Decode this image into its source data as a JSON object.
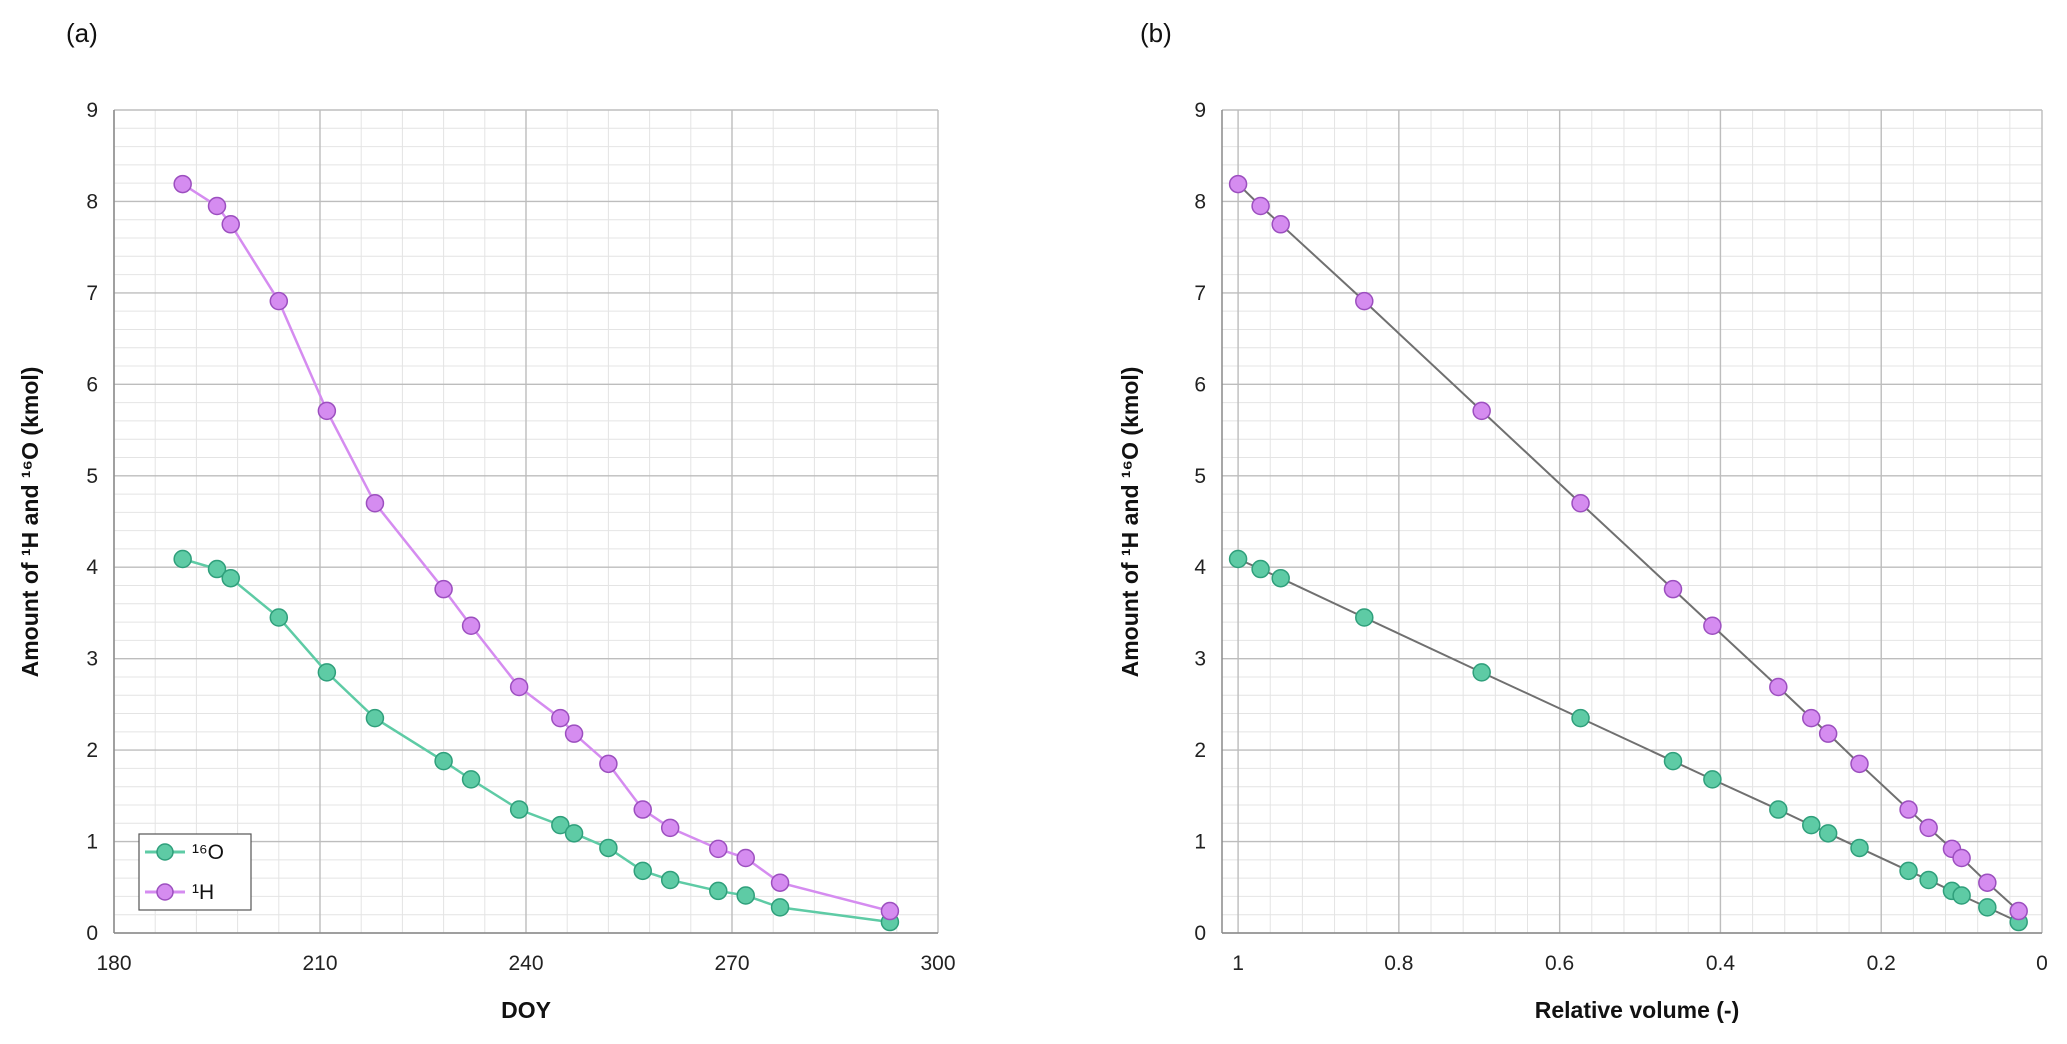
{
  "colors": {
    "o16": "#5ecba5",
    "o16_stroke": "#2f9f7b",
    "h1": "#d58cf0",
    "h1_stroke": "#9c4fbf",
    "line_gray": "#707070",
    "major_grid": "#bdbdbd",
    "minor_grid": "#e4e4e4"
  },
  "chart_data": [
    {
      "panel_label": "(a)",
      "type": "line",
      "xlabel": "DOY",
      "ylabel": "Amount of ¹H and ¹⁶O (kmol)",
      "xlim": [
        180,
        300
      ],
      "ylim": [
        0,
        9
      ],
      "x_ticks": [
        "180",
        "210",
        "240",
        "270",
        "300"
      ],
      "y_ticks": [
        "0",
        "1",
        "2",
        "3",
        "4",
        "5",
        "6",
        "7",
        "8",
        "9"
      ],
      "grid": true,
      "legend": {
        "placement": "bottom-left",
        "entries": [
          "¹⁶O",
          "¹H"
        ]
      },
      "series": [
        {
          "name": "¹⁶O",
          "color": "#5ecba5",
          "points": [
            [
              190,
              4.09
            ],
            [
              195,
              3.98
            ],
            [
              197,
              3.88
            ],
            [
              204,
              3.45
            ],
            [
              211,
              2.85
            ],
            [
              218,
              2.35
            ],
            [
              228,
              1.88
            ],
            [
              232,
              1.68
            ],
            [
              239,
              1.35
            ],
            [
              245,
              1.18
            ],
            [
              247,
              1.09
            ],
            [
              252,
              0.93
            ],
            [
              257,
              0.68
            ],
            [
              261,
              0.58
            ],
            [
              268,
              0.46
            ],
            [
              272,
              0.41
            ],
            [
              277,
              0.28
            ],
            [
              293,
              0.12
            ]
          ]
        },
        {
          "name": "¹H",
          "color": "#d58cf0",
          "points": [
            [
              190,
              8.19
            ],
            [
              195,
              7.95
            ],
            [
              197,
              7.75
            ],
            [
              204,
              6.91
            ],
            [
              211,
              5.71
            ],
            [
              218,
              4.7
            ],
            [
              228,
              3.76
            ],
            [
              232,
              3.36
            ],
            [
              239,
              2.69
            ],
            [
              245,
              2.35
            ],
            [
              247,
              2.18
            ],
            [
              252,
              1.85
            ],
            [
              257,
              1.35
            ],
            [
              261,
              1.15
            ],
            [
              268,
              0.92
            ],
            [
              272,
              0.82
            ],
            [
              277,
              0.55
            ],
            [
              293,
              0.24
            ]
          ]
        }
      ]
    },
    {
      "panel_label": "(b)",
      "type": "line",
      "xlabel": "Relative volume (-)",
      "ylabel": "Amount of ¹H and ¹⁶O (kmol)",
      "xlim": [
        1.02,
        0
      ],
      "x_reversed": true,
      "ylim": [
        0,
        9
      ],
      "x_ticks": [
        "1",
        "0.8",
        "0.6",
        "0.4",
        "0.2",
        "0"
      ],
      "y_ticks": [
        "0",
        "1",
        "2",
        "3",
        "4",
        "5",
        "6",
        "7",
        "8",
        "9"
      ],
      "grid": true,
      "line_color": "#707070",
      "series": [
        {
          "color": "#5ecba5",
          "points": [
            [
              1.0,
              4.09
            ],
            [
              0.972,
              3.98
            ],
            [
              0.947,
              3.88
            ],
            [
              0.843,
              3.45
            ],
            [
              0.697,
              2.85
            ],
            [
              0.574,
              2.35
            ],
            [
              0.459,
              1.88
            ],
            [
              0.41,
              1.68
            ],
            [
              0.328,
              1.35
            ],
            [
              0.287,
              1.18
            ],
            [
              0.266,
              1.09
            ],
            [
              0.227,
              0.93
            ],
            [
              0.166,
              0.68
            ],
            [
              0.141,
              0.58
            ],
            [
              0.112,
              0.46
            ],
            [
              0.1,
              0.41
            ],
            [
              0.068,
              0.28
            ],
            [
              0.029,
              0.12
            ]
          ]
        },
        {
          "color": "#d58cf0",
          "points": [
            [
              1.0,
              8.19
            ],
            [
              0.972,
              7.95
            ],
            [
              0.947,
              7.75
            ],
            [
              0.843,
              6.91
            ],
            [
              0.697,
              5.71
            ],
            [
              0.574,
              4.7
            ],
            [
              0.459,
              3.76
            ],
            [
              0.41,
              3.36
            ],
            [
              0.328,
              2.69
            ],
            [
              0.287,
              2.35
            ],
            [
              0.266,
              2.18
            ],
            [
              0.227,
              1.85
            ],
            [
              0.166,
              1.35
            ],
            [
              0.141,
              1.15
            ],
            [
              0.112,
              0.92
            ],
            [
              0.1,
              0.82
            ],
            [
              0.068,
              0.55
            ],
            [
              0.029,
              0.24
            ]
          ]
        }
      ]
    }
  ]
}
